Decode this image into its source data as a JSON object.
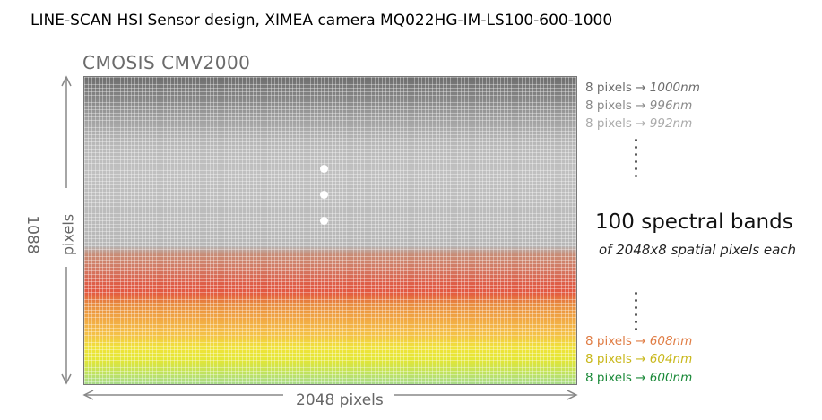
{
  "title": "LINE-SCAN HSI Sensor design, XIMEA camera MQ022HG-IM-LS100-600-1000",
  "sensor_name": "CMOSIS CMV2000",
  "height_label": {
    "number": "1088",
    "unit": "pixels"
  },
  "width_label": "2048 pixels",
  "top_bands": [
    {
      "pixels": "8 pixels",
      "arrow": "→",
      "wavelength": "1000nm",
      "color": "#6d6d6d"
    },
    {
      "pixels": "8 pixels",
      "arrow": "→",
      "wavelength": "996nm",
      "color": "#8a8a8a"
    },
    {
      "pixels": "8 pixels",
      "arrow": "→",
      "wavelength": "992nm",
      "color": "#ababab"
    }
  ],
  "bottom_bands": [
    {
      "pixels": "8 pixels",
      "arrow": "→",
      "wavelength": "608nm",
      "color": "#e07d45"
    },
    {
      "pixels": "8 pixels",
      "arrow": "→",
      "wavelength": "604nm",
      "color": "#c9b81c"
    },
    {
      "pixels": "8 pixels",
      "arrow": "→",
      "wavelength": "600nm",
      "color": "#1c8a3a"
    }
  ],
  "bands_heading": "100 spectral bands",
  "bands_subheading": "of 2048x8 spatial pixels each"
}
